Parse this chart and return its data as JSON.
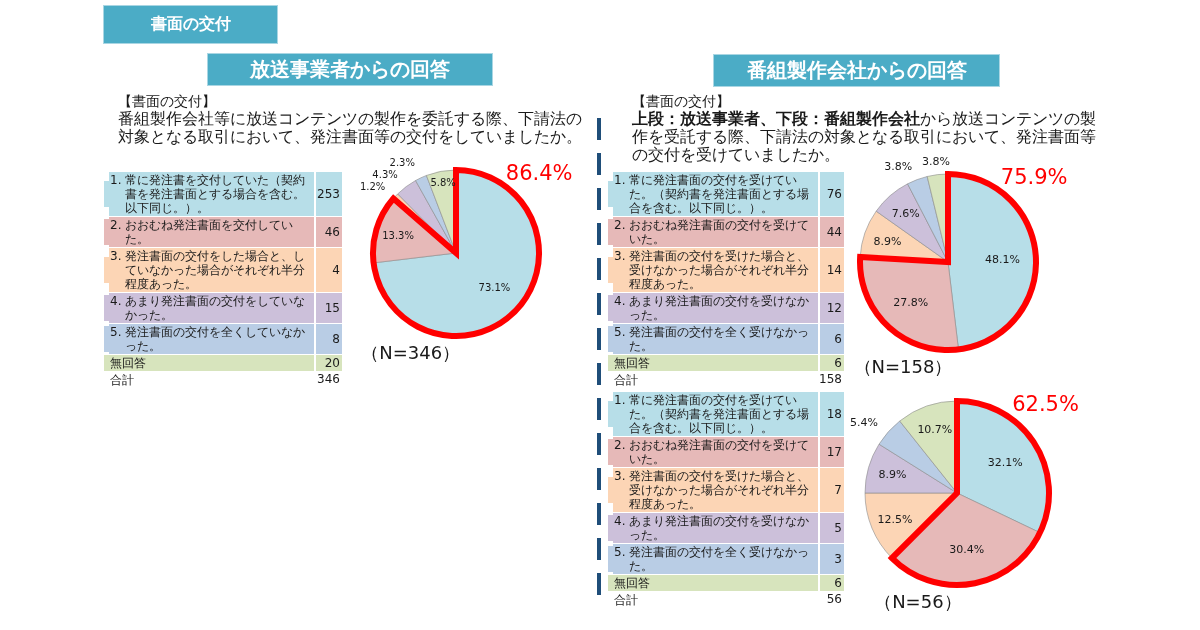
{
  "chart_data": [
    {
      "type": "pie",
      "title": "書面の交付",
      "subtitle": "放送事業者からの回答",
      "annotations": [
        "【書面の交付】",
        "番組製作会社等に放送コンテンツの製作を委託する際、下請法の対象となる取引において、発注書面等の交付をしていましたか。",
        "86.4%",
        "（N=346）",
        "253",
        "46",
        "4",
        "15",
        "8",
        "20",
        "合計",
        "346"
      ],
      "categories": [
        "1. 常に発注書を交付していた（契約書を発注書面とする場合を含む。以下同じ。）。",
        "2. おおむね発注書面を交付していた。",
        "3. 発注書面の交付をした場合と、していなかった場合がそれぞれ半分程度あった。",
        "4. あまり発注書面の交付をしていなかった。",
        "5. 発注書面の交付を全くしていなかった。",
        "無回答"
      ],
      "values": [
        73.1,
        13.3,
        1.2,
        4.3,
        2.3,
        5.8
      ],
      "value_labels": [
        "73.1%",
        "13.3%",
        "1.2%",
        "4.3%",
        "2.3%",
        "5.8%"
      ],
      "colors": [
        "#b7dee8",
        "#e6b9b8",
        "#fcd5b5",
        "#ccc0da",
        "#b9cde5",
        "#d7e4bd"
      ],
      "legend": "left"
    },
    {
      "type": "pie",
      "subtitle": "番組製作会社からの回答",
      "annotations": [
        "【書面の交付】",
        "上段：放送事業者、下段：番組製作会社",
        "から放送コンテンツの製",
        "作を受託する際、下請法の対象となる取引において、発注書面等",
        "の交付を受けていましたか。",
        "75.9%",
        "（N=158）",
        "76",
        "44",
        "14",
        "12",
        "6",
        "6",
        "合計",
        "158"
      ],
      "categories": [
        "1. 常に発注書面の交付を受けていた。（契約書を発注書面とする場合を含む。以下同じ。）。",
        "2. おおむね発注書面の交付を受けていた。",
        "3. 発注書面の交付を受けた場合と、受けなかった場合がそれぞれ半分程度あった。",
        "4. あまり発注書面の交付を受けなかった。",
        "5. 発注書面の交付を全く受けなかった。",
        "無回答"
      ],
      "values": [
        48.1,
        27.8,
        8.9,
        7.6,
        3.8,
        3.8
      ],
      "value_labels": [
        "48.1%",
        "27.8%",
        "8.9%",
        "7.6%",
        "3.8%",
        "3.8%"
      ],
      "colors": [
        "#b7dee8",
        "#e6b9b8",
        "#fcd5b5",
        "#ccc0da",
        "#b9cde5",
        "#d7e4bd"
      ],
      "legend": "left"
    },
    {
      "type": "pie",
      "annotations": [
        "62.5%",
        "（N=56）",
        "18",
        "17",
        "7",
        "5",
        "3",
        "6",
        "合計",
        "56"
      ],
      "categories": [
        "1. 常に発注書面の交付を受けていた。（契約書を発注書面とする場合を含む。以下同じ。）。",
        "2. おおむね発注書面の交付を受けていた。",
        "3. 発注書面の交付を受けた場合と、受けなかった場合がそれぞれ半分程度あった。",
        "4. あまり発注書面の交付を受けなかった。",
        "5. 発注書面の交付を全く受けなかった。",
        "無回答"
      ],
      "values": [
        32.1,
        30.4,
        12.5,
        8.9,
        5.4,
        10.7
      ],
      "value_labels": [
        "32.1%",
        "30.4%",
        "12.5%",
        "8.9%",
        "5.4%",
        "10.7%"
      ],
      "colors": [
        "#b7dee8",
        "#e6b9b8",
        "#fcd5b5",
        "#ccc0da",
        "#b9cde5",
        "#d7e4bd"
      ],
      "legend": "left"
    }
  ]
}
